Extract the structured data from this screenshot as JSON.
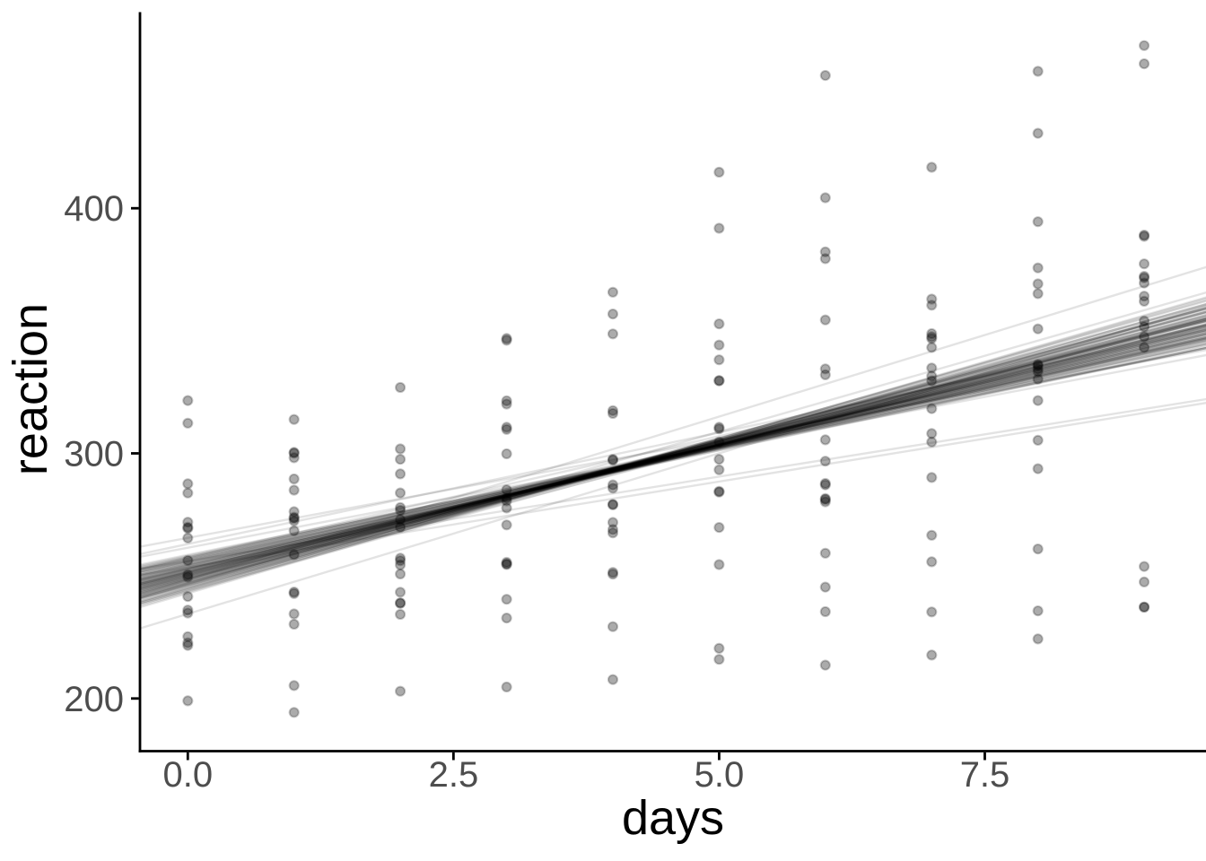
{
  "chart_data": {
    "type": "scatter",
    "title": "",
    "xlabel": "days",
    "ylabel": "reaction",
    "x": [
      0,
      1,
      2,
      3,
      4,
      5,
      6,
      7,
      8,
      9
    ],
    "series": [
      {
        "values": [
          249.56,
          258.7,
          250.8,
          321.44,
          356.85,
          414.69,
          382.2,
          290.15,
          430.59,
          466.35
        ]
      },
      {
        "values": [
          222.73,
          205.27,
          202.98,
          204.71,
          207.72,
          215.96,
          213.63,
          217.73,
          224.3,
          237.31
        ]
      },
      {
        "values": [
          199.05,
          194.33,
          234.32,
          232.84,
          229.31,
          220.46,
          235.42,
          255.75,
          261.01,
          247.52
        ]
      },
      {
        "values": [
          321.54,
          300.4,
          283.86,
          285.13,
          285.8,
          297.59,
          280.24,
          318.26,
          305.35,
          354.05
        ]
      },
      {
        "values": [
          287.61,
          285.0,
          301.82,
          320.12,
          316.28,
          293.32,
          296.8,
          334.82,
          293.75,
          371.58
        ]
      },
      {
        "values": [
          234.86,
          242.81,
          272.96,
          309.77,
          317.46,
          310.0,
          454.16,
          346.83,
          330.3,
          253.86
        ]
      },
      {
        "values": [
          283.84,
          289.56,
          276.77,
          299.81,
          297.17,
          338.17,
          332.03,
          348.84,
          333.36,
          362.04
        ]
      },
      {
        "values": [
          265.47,
          276.2,
          243.36,
          254.67,
          279.02,
          284.19,
          305.52,
          331.52,
          335.75,
          377.3
        ]
      },
      {
        "values": [
          241.61,
          273.95,
          254.49,
          270.8,
          251.45,
          254.64,
          245.45,
          235.31,
          235.75,
          237.25
        ]
      },
      {
        "values": [
          312.33,
          313.81,
          291.61,
          346.12,
          365.73,
          391.84,
          404.26,
          416.69,
          455.86,
          458.92
        ]
      },
      {
        "values": [
          236.1,
          230.32,
          238.93,
          254.92,
          250.71,
          269.77,
          281.56,
          308.1,
          336.28,
          351.65
        ]
      },
      {
        "values": [
          256.3,
          243.45,
          256.2,
          255.53,
          268.92,
          329.72,
          379.44,
          362.92,
          394.49,
          389.05
        ]
      },
      {
        "values": [
          250.53,
          300.06,
          269.89,
          280.59,
          271.82,
          304.63,
          287.75,
          266.6,
          321.54,
          347.57
        ]
      },
      {
        "values": [
          221.68,
          298.19,
          326.88,
          346.86,
          348.74,
          352.83,
          354.43,
          360.43,
          375.64,
          388.54
        ]
      },
      {
        "values": [
          271.92,
          268.44,
          257.24,
          277.71,
          297.59,
          310.63,
          287.17,
          329.61,
          334.48,
          343.22
        ]
      },
      {
        "values": [
          225.26,
          234.52,
          238.9,
          240.47,
          267.54,
          344.19,
          281.15,
          347.59,
          365.16,
          372.23
        ]
      },
      {
        "values": [
          269.88,
          272.44,
          277.9,
          281.79,
          279.17,
          284.51,
          259.27,
          304.63,
          350.78,
          369.47
        ]
      },
      {
        "values": [
          269.41,
          273.47,
          297.6,
          310.63,
          287.17,
          329.61,
          334.48,
          343.22,
          369.14,
          364.12
        ]
      }
    ],
    "fit_lines": {
      "model": "y = intercept + slope * x",
      "params": [
        [
          251.2,
          10.5
        ],
        [
          248.7,
          11.2
        ],
        [
          253.4,
          9.8
        ],
        [
          246.1,
          11.8
        ],
        [
          256.8,
          9.3
        ],
        [
          250.3,
          10.9
        ],
        [
          244.9,
          12.1
        ],
        [
          258.2,
          9.0
        ],
        [
          252.6,
          10.2
        ],
        [
          247.5,
          11.5
        ],
        [
          254.8,
          9.6
        ],
        [
          249.1,
          10.8
        ],
        [
          257.5,
          9.9
        ],
        [
          243.8,
          11.9
        ],
        [
          251.9,
          10.1
        ],
        [
          246.8,
          12.4
        ],
        [
          255.3,
          9.2
        ],
        [
          250.7,
          10.6
        ],
        [
          248.2,
          11.1
        ],
        [
          253.9,
          10.0
        ],
        [
          245.6,
          11.4
        ],
        [
          257.0,
          9.5
        ],
        [
          251.5,
          10.4
        ],
        [
          247.0,
          11.7
        ],
        [
          254.2,
          9.7
        ],
        [
          249.6,
          11.0
        ],
        [
          256.2,
          9.4
        ],
        [
          244.3,
          12.0
        ],
        [
          252.2,
          10.3
        ],
        [
          248.9,
          11.3
        ],
        [
          255.7,
          9.1
        ],
        [
          250.0,
          10.7
        ],
        [
          246.4,
          11.6
        ],
        [
          253.1,
          9.9
        ],
        [
          249.4,
          10.9
        ],
        [
          257.8,
          8.9
        ],
        [
          245.2,
          12.2
        ],
        [
          251.7,
          10.5
        ],
        [
          247.8,
          11.2
        ],
        [
          254.5,
          9.5
        ],
        [
          250.5,
          10.8
        ],
        [
          242.9,
          12.6
        ],
        [
          256.5,
          9.3
        ],
        [
          252.9,
          10.1
        ],
        [
          248.4,
          11.4
        ],
        [
          255.0,
          9.8
        ],
        [
          246.6,
          11.9
        ],
        [
          251.0,
          10.6
        ],
        [
          258.6,
          8.8
        ],
        [
          249.9,
          11.0
        ],
        [
          253.6,
          9.7
        ],
        [
          247.3,
          11.6
        ],
        [
          250.9,
          10.4
        ],
        [
          244.6,
          12.3
        ],
        [
          256.0,
          9.2
        ],
        [
          252.4,
          10.2
        ],
        [
          248.0,
          11.3
        ],
        [
          254.0,
          9.9
        ],
        [
          249.2,
          10.7
        ],
        [
          257.2,
          9.4
        ],
        [
          245.9,
          11.8
        ],
        [
          251.4,
          10.47
        ],
        [
          247.7,
          11.1
        ],
        [
          253.3,
          10.0
        ],
        [
          250.2,
          10.9
        ],
        [
          243.4,
          12.5
        ],
        [
          255.5,
          9.6
        ],
        [
          251.8,
          10.3
        ],
        [
          246.2,
          11.5
        ],
        [
          252.7,
          10.0
        ],
        [
          248.6,
          11.2
        ],
        [
          254.7,
          9.4
        ],
        [
          250.4,
          10.6
        ],
        [
          245.0,
          12.0
        ],
        [
          256.7,
          9.0
        ],
        [
          249.8,
          10.8
        ],
        [
          253.0,
          9.8
        ],
        [
          247.1,
          11.7
        ],
        [
          251.3,
          10.4
        ],
        [
          255.9,
          9.5
        ],
        [
          244.0,
          12.2
        ],
        [
          252.0,
          10.2
        ],
        [
          248.8,
          11.0
        ],
        [
          254.3,
          9.6
        ],
        [
          250.8,
          10.5
        ],
        [
          246.9,
          11.3
        ],
        [
          257.6,
          9.1
        ],
        [
          249.5,
          10.9
        ],
        [
          252.8,
          10.0
        ],
        [
          251.6,
          10.7
        ],
        [
          256.0,
          6.9
        ],
        [
          253.5,
          7.0
        ],
        [
          234.5,
          13.1
        ],
        [
          248.5,
          13.3
        ],
        [
          261.5,
          8.2
        ],
        [
          265.5,
          8.0
        ],
        [
          263.0,
          9.1
        ]
      ]
    },
    "axes": {
      "x_ticks": [
        {
          "v": 0,
          "label": "0.0"
        },
        {
          "v": 2.5,
          "label": "2.5"
        },
        {
          "v": 5,
          "label": "5.0"
        },
        {
          "v": 7.5,
          "label": "7.5"
        }
      ],
      "y_ticks": [
        {
          "v": 200,
          "label": "200"
        },
        {
          "v": 300,
          "label": "300"
        },
        {
          "v": 400,
          "label": "400"
        }
      ],
      "x_domain": [
        -0.45,
        9.59
      ],
      "y_domain": [
        178.9,
        480.0
      ],
      "grid": false,
      "legend": false
    },
    "style": {
      "background": "#ffffff",
      "point_color": "#000000",
      "point_fill_opacity": 0.33,
      "point_stroke_opacity": 0.22,
      "fit_line_color": "#000000",
      "fit_line_opacity": 0.11,
      "axis_line_color": "#000000",
      "tick_label_color": "#4d4d4d",
      "axis_title_color": "#000000"
    }
  }
}
